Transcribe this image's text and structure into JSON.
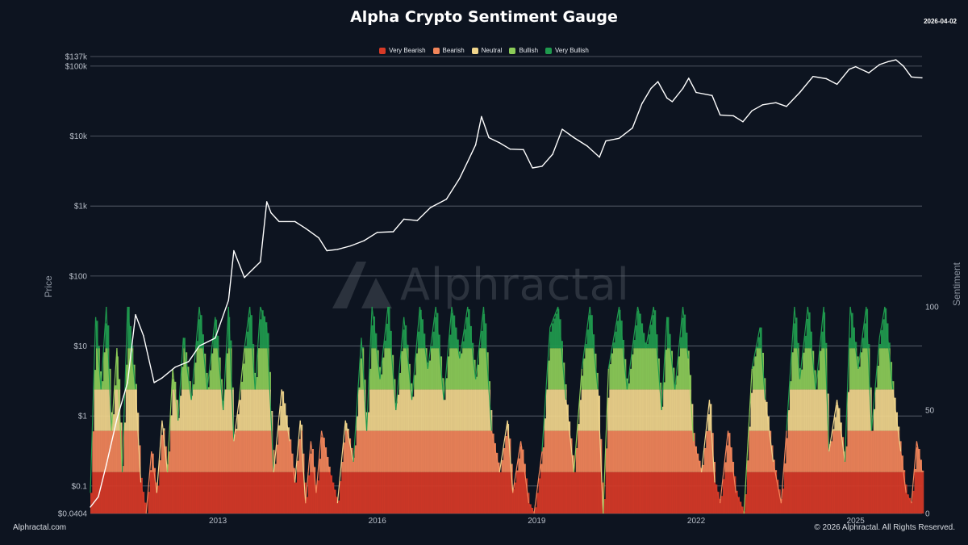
{
  "header": {
    "title": "Alpha Crypto Sentiment Gauge",
    "date": "2026-04-02"
  },
  "footer": {
    "brand": "Alphractal.com",
    "copyright": "© 2026 Alphractal. All Rights Reserved."
  },
  "watermark": {
    "text": "Alphractal"
  },
  "colors": {
    "background": "#0d1420",
    "very_bearish": "#d73a27",
    "bearish": "#f2855a",
    "neutral": "#f0d58c",
    "bullish": "#8ccc58",
    "very_bullish": "#1f9a4e",
    "price_line": "#ffffff"
  },
  "chart_data": {
    "type": "line",
    "title": "Alpha Crypto Sentiment Gauge",
    "xlabel": "",
    "ylabel": "Price",
    "y2label": "Sentiment",
    "y_scale": "log",
    "ylim": [
      0.0404,
      137000
    ],
    "y2lim": [
      0,
      100
    ],
    "xlim": [
      2010.6,
      2026.25
    ],
    "grid": true,
    "legend_position": "top-center",
    "x_ticks": [
      {
        "value": 2013,
        "label": "2013"
      },
      {
        "value": 2016,
        "label": "2016"
      },
      {
        "value": 2019,
        "label": "2019"
      },
      {
        "value": 2022,
        "label": "2022"
      },
      {
        "value": 2025,
        "label": "2025"
      }
    ],
    "y_ticks": [
      {
        "value": 0.0404,
        "label": "$0.0404"
      },
      {
        "value": 0.1,
        "label": "$0.1"
      },
      {
        "value": 1,
        "label": "$1"
      },
      {
        "value": 10,
        "label": "$10"
      },
      {
        "value": 100,
        "label": "$100"
      },
      {
        "value": 1000,
        "label": "$1k"
      },
      {
        "value": 10000,
        "label": "$10k"
      },
      {
        "value": 100000,
        "label": "$100k"
      },
      {
        "value": 137000,
        "label": "$137k"
      }
    ],
    "y2_ticks": [
      {
        "value": 0,
        "label": "0"
      },
      {
        "value": 50,
        "label": "50"
      },
      {
        "value": 100,
        "label": "100"
      }
    ],
    "legend": [
      {
        "name": "Very Bearish",
        "range": [
          0,
          20
        ],
        "color": "#d73a27"
      },
      {
        "name": "Bearish",
        "range": [
          20,
          40
        ],
        "color": "#f2855a"
      },
      {
        "name": "Neutral",
        "range": [
          40,
          60
        ],
        "color": "#f0d58c"
      },
      {
        "name": "Bullish",
        "range": [
          60,
          80
        ],
        "color": "#8ccc58"
      },
      {
        "name": "Very Bullish",
        "range": [
          80,
          100
        ],
        "color": "#1f9a4e"
      }
    ],
    "series": [
      {
        "name": "Price",
        "axis": "left",
        "points": [
          [
            2010.6,
            0.05
          ],
          [
            2010.75,
            0.07
          ],
          [
            2010.9,
            0.2
          ],
          [
            2011.1,
            0.9
          ],
          [
            2011.3,
            3
          ],
          [
            2011.45,
            28
          ],
          [
            2011.6,
            14
          ],
          [
            2011.8,
            3
          ],
          [
            2011.95,
            3.5
          ],
          [
            2012.2,
            5
          ],
          [
            2012.45,
            6
          ],
          [
            2012.65,
            10
          ],
          [
            2012.95,
            13
          ],
          [
            2013.2,
            45
          ],
          [
            2013.3,
            230
          ],
          [
            2013.5,
            95
          ],
          [
            2013.8,
            160
          ],
          [
            2013.92,
            1150
          ],
          [
            2014.0,
            800
          ],
          [
            2014.15,
            600
          ],
          [
            2014.45,
            600
          ],
          [
            2014.65,
            480
          ],
          [
            2014.9,
            350
          ],
          [
            2015.05,
            230
          ],
          [
            2015.25,
            240
          ],
          [
            2015.5,
            270
          ],
          [
            2015.75,
            320
          ],
          [
            2016.0,
            420
          ],
          [
            2016.3,
            430
          ],
          [
            2016.5,
            650
          ],
          [
            2016.75,
            620
          ],
          [
            2017.0,
            950
          ],
          [
            2017.3,
            1250
          ],
          [
            2017.55,
            2500
          ],
          [
            2017.7,
            4300
          ],
          [
            2017.85,
            7500
          ],
          [
            2017.96,
            19000
          ],
          [
            2018.1,
            9500
          ],
          [
            2018.3,
            8000
          ],
          [
            2018.5,
            6500
          ],
          [
            2018.75,
            6400
          ],
          [
            2018.92,
            3500
          ],
          [
            2019.1,
            3700
          ],
          [
            2019.3,
            5500
          ],
          [
            2019.48,
            12500
          ],
          [
            2019.7,
            9500
          ],
          [
            2019.95,
            7200
          ],
          [
            2020.18,
            5000
          ],
          [
            2020.3,
            8500
          ],
          [
            2020.55,
            9300
          ],
          [
            2020.8,
            13000
          ],
          [
            2020.98,
            29000
          ],
          [
            2021.15,
            48000
          ],
          [
            2021.28,
            60000
          ],
          [
            2021.45,
            35000
          ],
          [
            2021.55,
            31000
          ],
          [
            2021.75,
            48000
          ],
          [
            2021.86,
            67000
          ],
          [
            2022.0,
            42000
          ],
          [
            2022.3,
            38000
          ],
          [
            2022.45,
            20000
          ],
          [
            2022.7,
            19500
          ],
          [
            2022.88,
            16000
          ],
          [
            2023.05,
            23000
          ],
          [
            2023.25,
            28000
          ],
          [
            2023.5,
            30000
          ],
          [
            2023.7,
            26500
          ],
          [
            2023.95,
            42000
          ],
          [
            2024.2,
            71000
          ],
          [
            2024.45,
            66000
          ],
          [
            2024.65,
            55000
          ],
          [
            2024.88,
            90000
          ],
          [
            2025.0,
            98000
          ],
          [
            2025.25,
            80000
          ],
          [
            2025.45,
            105000
          ],
          [
            2025.6,
            115000
          ],
          [
            2025.76,
            123000
          ],
          [
            2025.9,
            100000
          ],
          [
            2026.05,
            70000
          ],
          [
            2026.25,
            68000
          ]
        ]
      },
      {
        "name": "Sentiment",
        "axis": "right",
        "points": [
          [
            2010.6,
            10
          ],
          [
            2010.7,
            95
          ],
          [
            2010.8,
            60
          ],
          [
            2010.9,
            100
          ],
          [
            2011.0,
            40
          ],
          [
            2011.1,
            80
          ],
          [
            2011.2,
            20
          ],
          [
            2011.3,
            100
          ],
          [
            2011.45,
            60
          ],
          [
            2011.55,
            15
          ],
          [
            2011.65,
            0
          ],
          [
            2011.75,
            30
          ],
          [
            2011.85,
            10
          ],
          [
            2011.95,
            45
          ],
          [
            2012.05,
            20
          ],
          [
            2012.15,
            70
          ],
          [
            2012.25,
            45
          ],
          [
            2012.35,
            85
          ],
          [
            2012.5,
            55
          ],
          [
            2012.65,
            100
          ],
          [
            2012.8,
            60
          ],
          [
            2012.95,
            95
          ],
          [
            2013.1,
            50
          ],
          [
            2013.2,
            100
          ],
          [
            2013.3,
            35
          ],
          [
            2013.4,
            55
          ],
          [
            2013.5,
            80
          ],
          [
            2013.6,
            100
          ],
          [
            2013.7,
            60
          ],
          [
            2013.8,
            100
          ],
          [
            2013.92,
            90
          ],
          [
            2014.05,
            20
          ],
          [
            2014.2,
            60
          ],
          [
            2014.35,
            35
          ],
          [
            2014.45,
            15
          ],
          [
            2014.55,
            45
          ],
          [
            2014.65,
            5
          ],
          [
            2014.75,
            35
          ],
          [
            2014.85,
            10
          ],
          [
            2014.95,
            40
          ],
          [
            2015.1,
            20
          ],
          [
            2015.25,
            5
          ],
          [
            2015.4,
            45
          ],
          [
            2015.55,
            25
          ],
          [
            2015.7,
            85
          ],
          [
            2015.8,
            40
          ],
          [
            2015.9,
            100
          ],
          [
            2016.05,
            65
          ],
          [
            2016.2,
            100
          ],
          [
            2016.35,
            50
          ],
          [
            2016.5,
            95
          ],
          [
            2016.65,
            55
          ],
          [
            2016.8,
            100
          ],
          [
            2016.95,
            70
          ],
          [
            2017.1,
            100
          ],
          [
            2017.25,
            55
          ],
          [
            2017.4,
            100
          ],
          [
            2017.55,
            75
          ],
          [
            2017.7,
            100
          ],
          [
            2017.85,
            65
          ],
          [
            2018.0,
            100
          ],
          [
            2018.15,
            40
          ],
          [
            2018.3,
            20
          ],
          [
            2018.45,
            45
          ],
          [
            2018.55,
            10
          ],
          [
            2018.7,
            35
          ],
          [
            2018.85,
            5
          ],
          [
            2018.95,
            0
          ],
          [
            2019.1,
            30
          ],
          [
            2019.25,
            90
          ],
          [
            2019.4,
            100
          ],
          [
            2019.55,
            55
          ],
          [
            2019.7,
            20
          ],
          [
            2019.85,
            70
          ],
          [
            2020.0,
            100
          ],
          [
            2020.15,
            60
          ],
          [
            2020.25,
            0
          ],
          [
            2020.35,
            70
          ],
          [
            2020.55,
            100
          ],
          [
            2020.7,
            60
          ],
          [
            2020.9,
            100
          ],
          [
            2021.05,
            80
          ],
          [
            2021.2,
            100
          ],
          [
            2021.35,
            50
          ],
          [
            2021.45,
            95
          ],
          [
            2021.6,
            60
          ],
          [
            2021.75,
            100
          ],
          [
            2021.85,
            75
          ],
          [
            2021.95,
            35
          ],
          [
            2022.1,
            20
          ],
          [
            2022.25,
            55
          ],
          [
            2022.35,
            15
          ],
          [
            2022.45,
            5
          ],
          [
            2022.6,
            40
          ],
          [
            2022.75,
            10
          ],
          [
            2022.9,
            0
          ],
          [
            2023.05,
            70
          ],
          [
            2023.2,
            90
          ],
          [
            2023.3,
            55
          ],
          [
            2023.45,
            25
          ],
          [
            2023.6,
            5
          ],
          [
            2023.7,
            40
          ],
          [
            2023.85,
            100
          ],
          [
            2023.95,
            65
          ],
          [
            2024.1,
            100
          ],
          [
            2024.25,
            60
          ],
          [
            2024.4,
            100
          ],
          [
            2024.5,
            30
          ],
          [
            2024.65,
            55
          ],
          [
            2024.8,
            25
          ],
          [
            2024.9,
            100
          ],
          [
            2025.05,
            70
          ],
          [
            2025.2,
            100
          ],
          [
            2025.3,
            40
          ],
          [
            2025.45,
            85
          ],
          [
            2025.55,
            100
          ],
          [
            2025.7,
            60
          ],
          [
            2025.85,
            30
          ],
          [
            2025.95,
            10
          ],
          [
            2026.05,
            5
          ],
          [
            2026.15,
            35
          ],
          [
            2026.25,
            20
          ]
        ]
      }
    ]
  }
}
